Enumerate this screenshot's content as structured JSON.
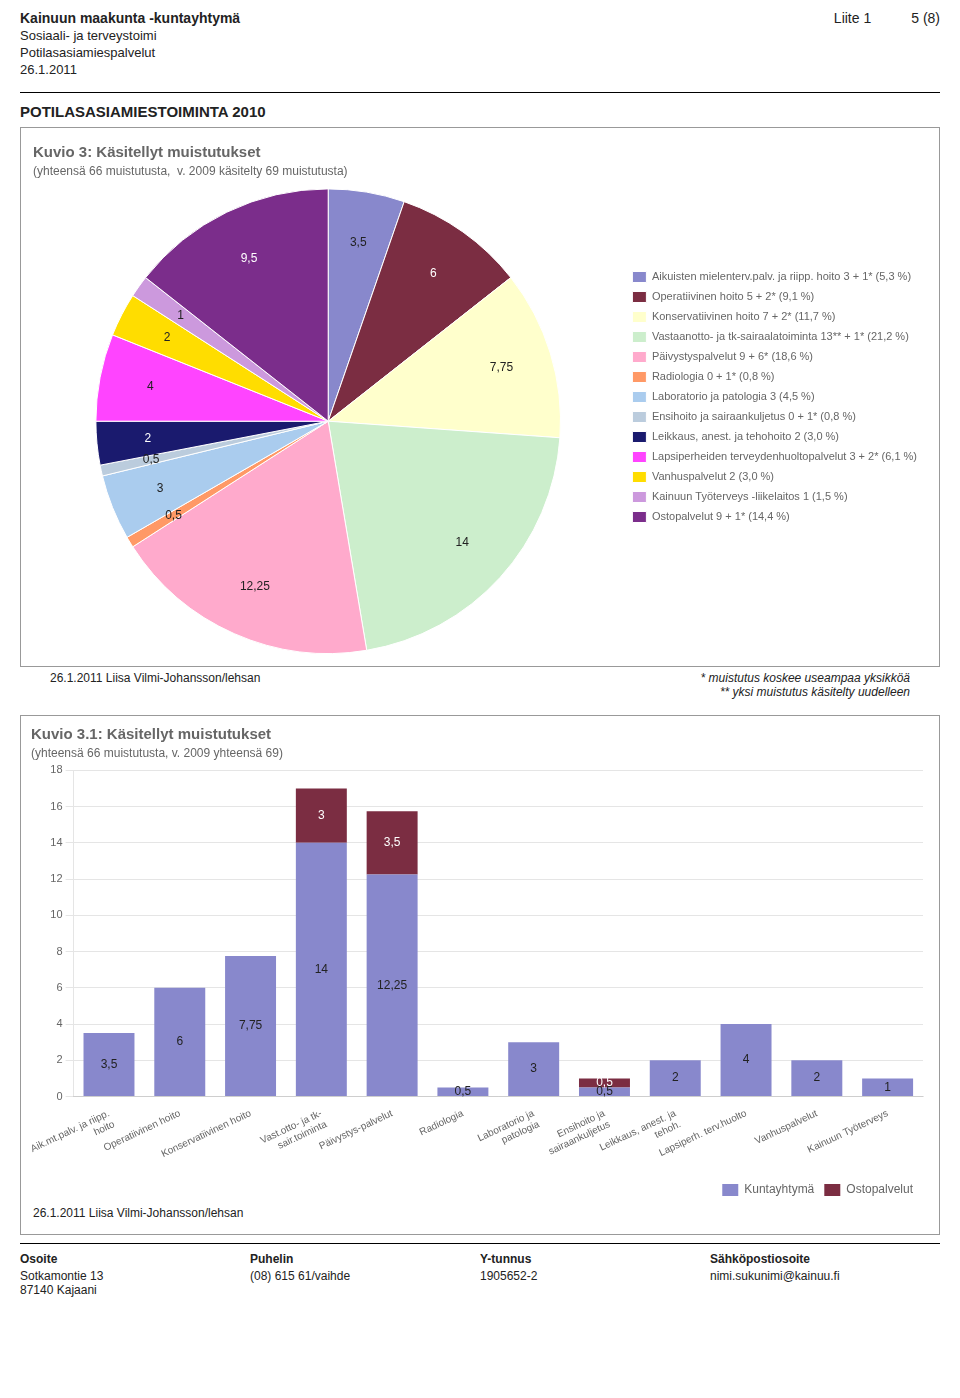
{
  "title": "POTILASASIAMIESTOIMINTA 2010",
  "annotations": [
    [
      "Kainuun maakunta -kuntayhtymä",
      "Sosiaali- ja terveystoimi",
      "Potilasasiamiespalvelut",
      "26.1.2011"
    ],
    [
      "Liite 1",
      "5 (8)"
    ],
    [
      "Osoite",
      "Sotkamontie 13",
      "87140 Kajaani"
    ],
    [
      "Puhelin",
      "(08) 615 61/vaihde"
    ],
    [
      "Y-tunnus",
      "1905652-2"
    ],
    [
      "Sähköpostiosoite",
      "nimi.sukunimi@kainuu.fi"
    ]
  ],
  "chart_data": [
    {
      "type": "pie",
      "title": "Kuvio 3: Käsitellyt muistutukset",
      "subtitle": "(yhteensä 66 muistutusta,  v. 2009 käsitelty 69 muistutusta)",
      "categories": [
        "Aikuisten mielenterv.palv. ja riipp. hoito 3 + 1* (5,3 %)",
        "Operatiivinen hoito 5 + 2* (9,1 %)",
        "Konservatiivinen hoito 7 + 2* (11,7 %)",
        "Vastaanotto- ja tk-sairaalatoiminta 13** + 1* (21,2 %)",
        "Päivystyspalvelut 9 + 6* (18,6 %)",
        "Radiologia 0 + 1* (0,8 %)",
        "Laboratorio ja patologia 3 (4,5 %)",
        "Ensihoito ja sairaankuljetus 0 + 1* (0,8 %)",
        "Leikkaus, anest. ja tehohoito 2 (3,0 %)",
        "Lapsiperheiden terveydenhuoltopalvelut 3 + 2* (6,1 %)",
        "Vanhuspalvelut 2 (3,0 %)",
        "Kainuun Työterveys -liikelaitos 1 (1,5 %)",
        "Ostopalvelut 9 + 1* (14,4 %)"
      ],
      "values": [
        3.5,
        6.0,
        7.75,
        14.0,
        12.25,
        0.5,
        3.0,
        0.5,
        2.0,
        4.0,
        2.0,
        1.0,
        9.5
      ],
      "value_labels": [
        "3,5",
        "6",
        "7,75",
        "14",
        "12,25",
        "0,5",
        "3",
        "0,5",
        "2",
        "4",
        "2",
        "1",
        "9,5"
      ],
      "colors": [
        "#8888CC",
        "#7B2D42",
        "#FFFFCC",
        "#CCEECC",
        "#FFAACC",
        "#FF9966",
        "#AACCEE",
        "#BBCCDD",
        "#1A1A6E",
        "#FF44FF",
        "#FFDD00",
        "#CC99DD",
        "#7B2D8B"
      ],
      "data_labels": true,
      "legend": "right",
      "annotations": [
        "26.1.2011 Liisa Vilmi-Johansson/lehsan",
        "* muistutus koskee useampaa yksikköä",
        "** yksi muistutus käsitelty uudelleen"
      ]
    },
    {
      "type": "bar",
      "title": "Kuvio 3.1: Käsitellyt muistutukset",
      "subtitle": "(yhteensä 66 muistutusta, v. 2009 yhteensä 69)",
      "categories": [
        "Aik.mt.palv. ja riipp.\nhoito",
        "Operatiivinen hoito",
        "Konservatiivinen hoito",
        "Vast.otto- ja tk-\nsair.toiminta",
        "Päivystys-palvelut",
        "Radiologia",
        "Laboratorio ja\npatologia",
        "Ensihoito ja\nsairaankuljetus",
        "Leikkaus, anest. ja\ntehoh.",
        "Lapsiperh. terv.huolto",
        "Vanhuspalvelut",
        "Kainuun Työterveys"
      ],
      "series": [
        {
          "name": "Kuntayhtymä",
          "color": "#8888CC",
          "values": [
            3.5,
            6.0,
            7.75,
            14.0,
            12.25,
            0.5,
            3.0,
            0.5,
            2.0,
            4.0,
            2.0,
            1.0
          ],
          "value_labels": [
            "3,5",
            "6",
            "7,75",
            "14",
            "12,25",
            "0,5",
            "3",
            "0,5",
            "2",
            "4",
            "2",
            "1"
          ]
        },
        {
          "name": "Ostopalvelut",
          "color": "#7B2D42",
          "values": [
            0.0,
            0.0,
            0.0,
            3.0,
            3.5,
            0.0,
            0.0,
            0.5,
            0.0,
            0.0,
            0.0,
            0.0
          ],
          "value_labels": [
            null,
            null,
            null,
            "3",
            "3,5",
            null,
            null,
            "0,5",
            null,
            null,
            null,
            null
          ]
        }
      ],
      "stacked": true,
      "ylim": [
        0,
        18
      ],
      "yticks": [
        0,
        2,
        4,
        6,
        8,
        10,
        12,
        14,
        16,
        18
      ],
      "grid": true,
      "data_labels": true,
      "legend": "bottom",
      "annotations": [
        "26.1.2011 Liisa Vilmi-Johansson/lehsan"
      ]
    }
  ]
}
